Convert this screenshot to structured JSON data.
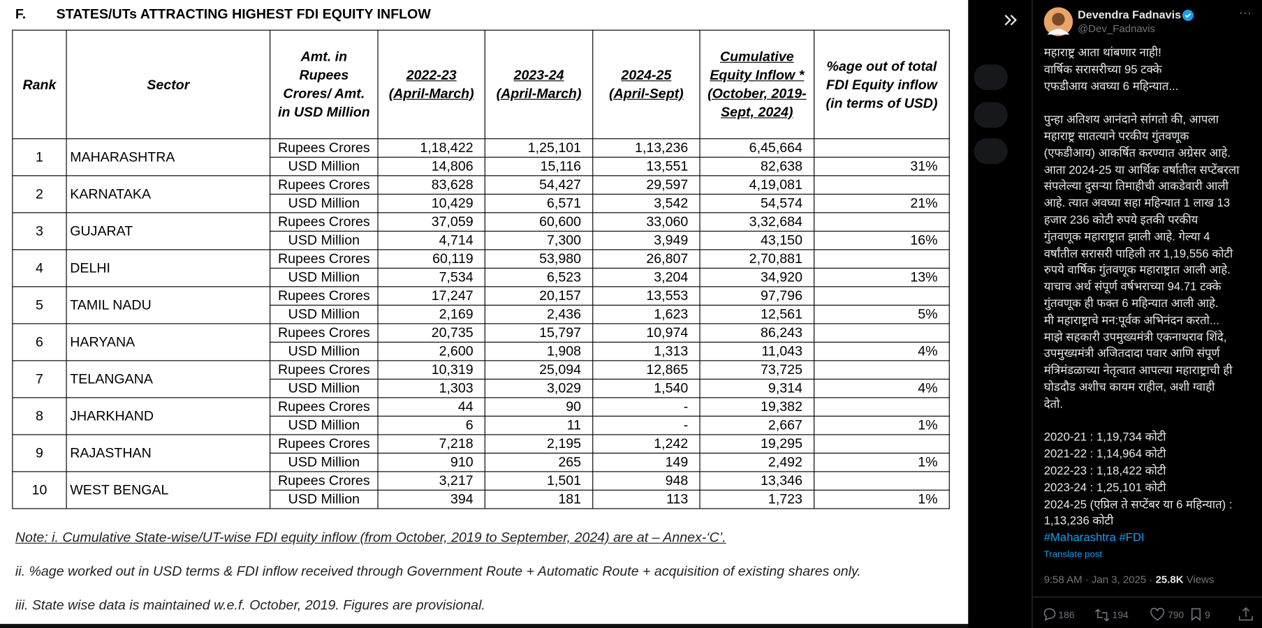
{
  "document": {
    "section": "F.",
    "title": "STATES/UTs ATTRACTING HIGHEST FDI EQUITY INFLOW",
    "table": {
      "headers": [
        [
          "Rank"
        ],
        [
          "Sector"
        ],
        [
          "Amt. in",
          "Rupees",
          "Crores/ Amt.",
          "in USD Million"
        ],
        [
          "2022-23",
          "(April-March)"
        ],
        [
          "2023-24",
          "(April-March)"
        ],
        [
          "2024-25",
          "(April-Sept)"
        ],
        [
          "Cumulative",
          "Equity Inflow *",
          "(October, 2019-",
          "Sept, 2024)"
        ],
        [
          "%age out of total",
          "FDI Equity inflow",
          "(in terms of USD)"
        ]
      ],
      "unit_labels": [
        "Rupees Crores",
        "USD Million"
      ],
      "rows": [
        {
          "rank": "1",
          "sector": "MAHARASHTRA",
          "rupees": [
            "1,18,422",
            "1,25,101",
            "1,13,236",
            "6,45,664"
          ],
          "usd": [
            "14,806",
            "15,116",
            "13,551",
            "82,638"
          ],
          "pct": "31%"
        },
        {
          "rank": "2",
          "sector": "KARNATAKA",
          "rupees": [
            "83,628",
            "54,427",
            "29,597",
            "4,19,081"
          ],
          "usd": [
            "10,429",
            "6,571",
            "3,542",
            "54,574"
          ],
          "pct": "21%"
        },
        {
          "rank": "3",
          "sector": "GUJARAT",
          "rupees": [
            "37,059",
            "60,600",
            "33,060",
            "3,32,684"
          ],
          "usd": [
            "4,714",
            "7,300",
            "3,949",
            "43,150"
          ],
          "pct": "16%"
        },
        {
          "rank": "4",
          "sector": "DELHI",
          "rupees": [
            "60,119",
            "53,980",
            "26,807",
            "2,70,881"
          ],
          "usd": [
            "7,534",
            "6,523",
            "3,204",
            "34,920"
          ],
          "pct": "13%"
        },
        {
          "rank": "5",
          "sector": "TAMIL NADU",
          "rupees": [
            "17,247",
            "20,157",
            "13,553",
            "97,796"
          ],
          "usd": [
            "2,169",
            "2,436",
            "1,623",
            "12,561"
          ],
          "pct": "5%"
        },
        {
          "rank": "6",
          "sector": "HARYANA",
          "rupees": [
            "20,735",
            "15,797",
            "10,974",
            "86,243"
          ],
          "usd": [
            "2,600",
            "1,908",
            "1,313",
            "11,043"
          ],
          "pct": "4%"
        },
        {
          "rank": "7",
          "sector": "TELANGANA",
          "rupees": [
            "10,319",
            "25,094",
            "12,865",
            "73,725"
          ],
          "usd": [
            "1,303",
            "3,029",
            "1,540",
            "9,314"
          ],
          "pct": "4%"
        },
        {
          "rank": "8",
          "sector": "JHARKHAND",
          "rupees": [
            "44",
            "90",
            "-",
            "19,382"
          ],
          "usd": [
            "6",
            "11",
            "-",
            "2,667"
          ],
          "pct": "1%"
        },
        {
          "rank": "9",
          "sector": "RAJASTHAN",
          "rupees": [
            "7,218",
            "2,195",
            "1,242",
            "19,295"
          ],
          "usd": [
            "910",
            "265",
            "149",
            "2,492"
          ],
          "pct": "1%"
        },
        {
          "rank": "10",
          "sector": "WEST BENGAL",
          "rupees": [
            "3,217",
            "1,501",
            "948",
            "13,346"
          ],
          "usd": [
            "394",
            "181",
            "113",
            "1,723"
          ],
          "pct": "1%"
        }
      ]
    },
    "notes": [
      "Note:  i. Cumulative State-wise/UT-wise FDI equity inflow (from October, 2019 to September, 2024) are at – Annex-‘C’.",
      "ii.  %age worked out in USD terms & FDI inflow received through Government Route + Automatic Route + acquisition of  existing shares only.",
      "iii. State wise data is maintained w.e.f. October, 2019. Figures are provisional."
    ]
  },
  "post": {
    "author": "Devendra Fadnavis",
    "handle": "@Dev_Fadnavis",
    "paragraphs": [
      [
        "महाराष्ट्र आता थांबणार नाही!",
        "वार्षिक सरासरीच्या 95 टक्के",
        "एफडीआय अवघ्या 6 महिन्यात..."
      ],
      [
        "पुन्हा अतिशय आनंदाने सांगतो की, आपला",
        "महाराष्ट्र सातत्याने परकीय गुंतवणूक",
        "(एफडीआय) आकर्षित करण्यात अग्रेसर आहे.",
        "आता 2024-25 या आर्थिक वर्षातील सप्टेंबरला",
        "संपलेल्या दुसऱ्या तिमाहीची आकडेवारी आली",
        "आहे. त्यात अवघ्या सहा महिन्यात 1 लाख 13",
        "हजार 236 कोटी रुपये इतकी परकीय",
        "गुंतवणूक महाराष्ट्रात झाली आहे. गेल्या 4",
        "वर्षांतील सरासरी पाहिली तर 1,19,556 कोटी",
        "रुपये वार्षिक गुंतवणूक महाराष्ट्रात आली आहे.",
        "याचाच अर्थ संपूर्ण वर्षभराच्या 94.71 टक्के",
        "गुंतवणूक ही फक्त 6 महिन्यात आली आहे.",
        "मी महाराष्ट्राचे मन:पूर्वक अभिनंदन करतो...",
        "माझे सहकारी उपमुख्यमंत्री एकनाथराव शिंदे,",
        "उपमुख्यमंत्री अजितदादा पवार आणि संपूर्ण",
        "मंत्रिमंडळाच्या नेतृत्वात आपल्या महाराष्ट्राची ही",
        "घोडदौड अशीच कायम राहील, अशी ग्वाही",
        "देतो."
      ],
      [
        "2020-21 : 1,19,734 कोटी",
        "2021-22 : 1,14,964 कोटी",
        "2022-23 : 1,18,422 कोटी",
        "2023-24 : 1,25,101 कोटी",
        "2024-25 (एप्रिल ते सप्टेंबर या 6 महिन्यात) :",
        "1,13,236 कोटी"
      ]
    ],
    "hashtags": [
      "#Maharashtra",
      "#FDI"
    ],
    "translate": "Translate post",
    "time": "9:58 AM · Jan 3, 2025 · ",
    "views": "25.8K",
    "views_label": " Views",
    "stats": {
      "replies": "186",
      "reposts": "194",
      "likes": "790",
      "bookmarks": "9"
    }
  }
}
